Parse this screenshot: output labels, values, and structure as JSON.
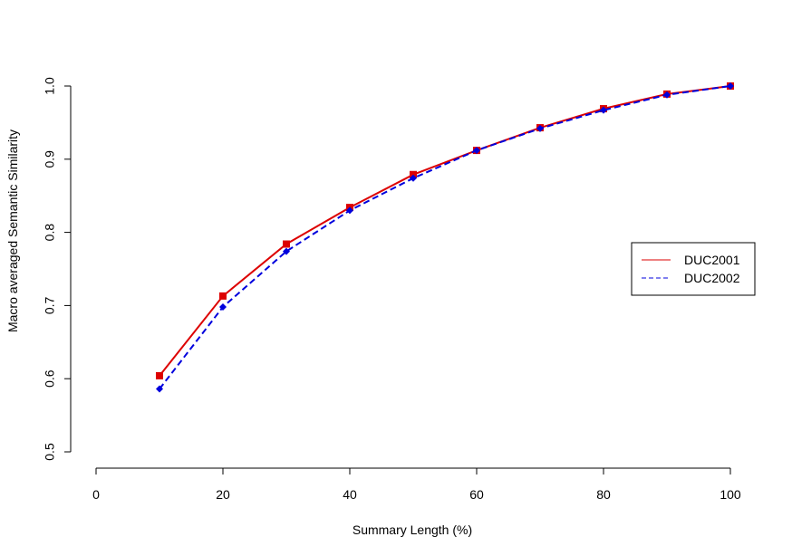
{
  "chart_data": {
    "type": "line",
    "title": "",
    "xlabel": "Summary Length (%)",
    "ylabel": "Macro averaged Semantic Similarity",
    "xlim": [
      0,
      100
    ],
    "ylim": [
      0.5,
      1.0
    ],
    "xticks": [
      0,
      20,
      40,
      60,
      80,
      100
    ],
    "yticks": [
      0.5,
      0.6,
      0.7,
      0.8,
      0.9,
      1.0
    ],
    "xtick_labels": [
      "0",
      "20",
      "40",
      "60",
      "80",
      "100"
    ],
    "ytick_labels": [
      "0.5",
      "0.6",
      "0.7",
      "0.8",
      "0.9",
      "1.0"
    ],
    "x": [
      10,
      20,
      30,
      40,
      50,
      60,
      70,
      80,
      90,
      100
    ],
    "grid": false,
    "legend_position": "right",
    "series": [
      {
        "name": "DUC2001",
        "color": "#dd0000",
        "line_style": "solid",
        "marker": "square",
        "values": [
          0.604,
          0.713,
          0.784,
          0.834,
          0.879,
          0.912,
          0.943,
          0.969,
          0.989,
          1.0
        ]
      },
      {
        "name": "DUC2002",
        "color": "#0000dd",
        "line_style": "dashed",
        "marker": "diamond",
        "values": [
          0.586,
          0.698,
          0.774,
          0.83,
          0.874,
          0.912,
          0.942,
          0.967,
          0.988,
          1.0
        ]
      }
    ]
  }
}
